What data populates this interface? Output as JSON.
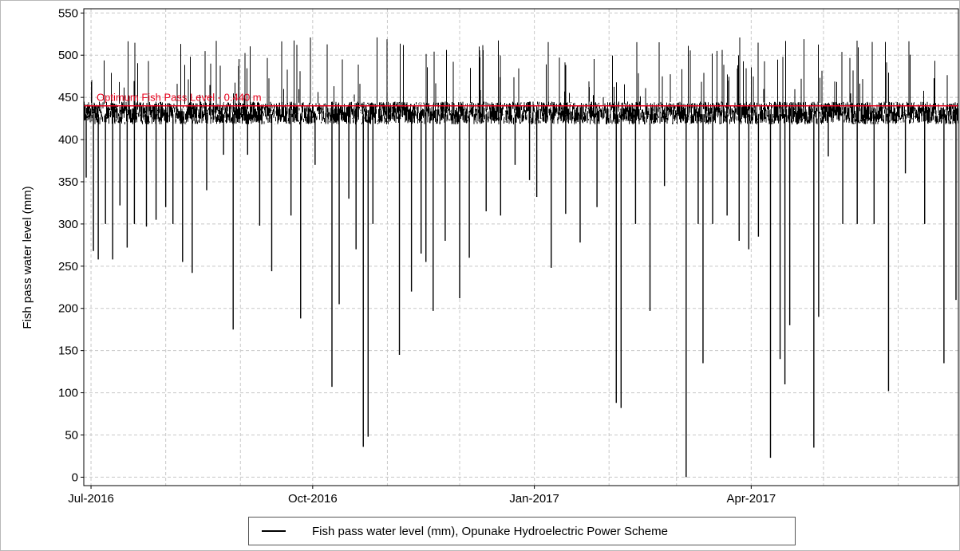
{
  "chart_data": {
    "type": "line",
    "title": "",
    "xlabel": "",
    "ylabel": "Fish pass water level (mm)",
    "ylim": [
      -10,
      555
    ],
    "xlim": [
      "2016-06-28",
      "2017-06-26"
    ],
    "y_ticks": [
      0,
      50,
      100,
      150,
      200,
      250,
      300,
      350,
      400,
      450,
      500,
      550
    ],
    "x_ticks": [
      {
        "date": "2016-07-01",
        "label": "Jul-2016"
      },
      {
        "date": "2016-10-01",
        "label": "Oct-2016"
      },
      {
        "date": "2017-01-01",
        "label": "Jan-2017"
      },
      {
        "date": "2017-04-01",
        "label": "Apr-2017"
      }
    ],
    "x_minor_grid": [
      "2016-08-01",
      "2016-09-01",
      "2016-11-01",
      "2016-12-01",
      "2017-02-01",
      "2017-03-01",
      "2017-05-01",
      "2017-06-01"
    ],
    "grid": true,
    "legend_position": "bottom",
    "series": [
      {
        "name": "Fish pass water level (mm), Opunake Hydroelectric Power Scheme",
        "color": "#000000",
        "baseline_band": [
          418,
          445
        ],
        "spike_max": 522,
        "dips": [
          [
            "2016-06-29",
            355
          ],
          [
            "2016-07-02",
            268
          ],
          [
            "2016-07-04",
            258
          ],
          [
            "2016-07-07",
            300
          ],
          [
            "2016-07-10",
            258
          ],
          [
            "2016-07-13",
            322
          ],
          [
            "2016-07-16",
            272
          ],
          [
            "2016-07-19",
            300
          ],
          [
            "2016-07-24",
            297
          ],
          [
            "2016-07-28",
            305
          ],
          [
            "2016-08-01",
            320
          ],
          [
            "2016-08-04",
            300
          ],
          [
            "2016-08-08",
            255
          ],
          [
            "2016-08-12",
            242
          ],
          [
            "2016-08-18",
            340
          ],
          [
            "2016-08-25",
            382
          ],
          [
            "2016-08-29",
            175
          ],
          [
            "2016-09-04",
            382
          ],
          [
            "2016-09-09",
            298
          ],
          [
            "2016-09-14",
            244
          ],
          [
            "2016-09-22",
            310
          ],
          [
            "2016-09-26",
            188
          ],
          [
            "2016-10-02",
            370
          ],
          [
            "2016-10-09",
            107
          ],
          [
            "2016-10-12",
            205
          ],
          [
            "2016-10-16",
            330
          ],
          [
            "2016-10-19",
            270
          ],
          [
            "2016-10-22",
            36
          ],
          [
            "2016-10-24",
            48
          ],
          [
            "2016-10-26",
            300
          ],
          [
            "2016-11-06",
            145
          ],
          [
            "2016-11-11",
            220
          ],
          [
            "2016-11-15",
            265
          ],
          [
            "2016-11-17",
            255
          ],
          [
            "2016-11-20",
            197
          ],
          [
            "2016-11-25",
            280
          ],
          [
            "2016-12-01",
            212
          ],
          [
            "2016-12-05",
            260
          ],
          [
            "2016-12-12",
            315
          ],
          [
            "2016-12-18",
            310
          ],
          [
            "2016-12-24",
            370
          ],
          [
            "2016-12-30",
            352
          ],
          [
            "2017-01-02",
            332
          ],
          [
            "2017-01-08",
            248
          ],
          [
            "2017-01-14",
            312
          ],
          [
            "2017-01-20",
            278
          ],
          [
            "2017-01-27",
            320
          ],
          [
            "2017-02-04",
            88
          ],
          [
            "2017-02-06",
            82
          ],
          [
            "2017-02-12",
            300
          ],
          [
            "2017-02-18",
            197
          ],
          [
            "2017-02-24",
            345
          ],
          [
            "2017-03-05",
            0
          ],
          [
            "2017-03-10",
            300
          ],
          [
            "2017-03-12",
            135
          ],
          [
            "2017-03-16",
            300
          ],
          [
            "2017-03-22",
            310
          ],
          [
            "2017-03-27",
            280
          ],
          [
            "2017-03-31",
            270
          ],
          [
            "2017-04-04",
            285
          ],
          [
            "2017-04-09",
            23
          ],
          [
            "2017-04-13",
            140
          ],
          [
            "2017-04-15",
            110
          ],
          [
            "2017-04-17",
            180
          ],
          [
            "2017-04-27",
            35
          ],
          [
            "2017-04-29",
            190
          ],
          [
            "2017-05-03",
            380
          ],
          [
            "2017-05-09",
            300
          ],
          [
            "2017-05-15",
            300
          ],
          [
            "2017-05-22",
            300
          ],
          [
            "2017-05-28",
            102
          ],
          [
            "2017-06-04",
            360
          ],
          [
            "2017-06-12",
            300
          ],
          [
            "2017-06-20",
            135
          ],
          [
            "2017-06-25",
            210
          ]
        ]
      },
      {
        "name": "Optimum Fish Pass Level - 0.440 m",
        "color": "#e8001c",
        "type": "reference_line",
        "y": 440
      }
    ]
  }
}
